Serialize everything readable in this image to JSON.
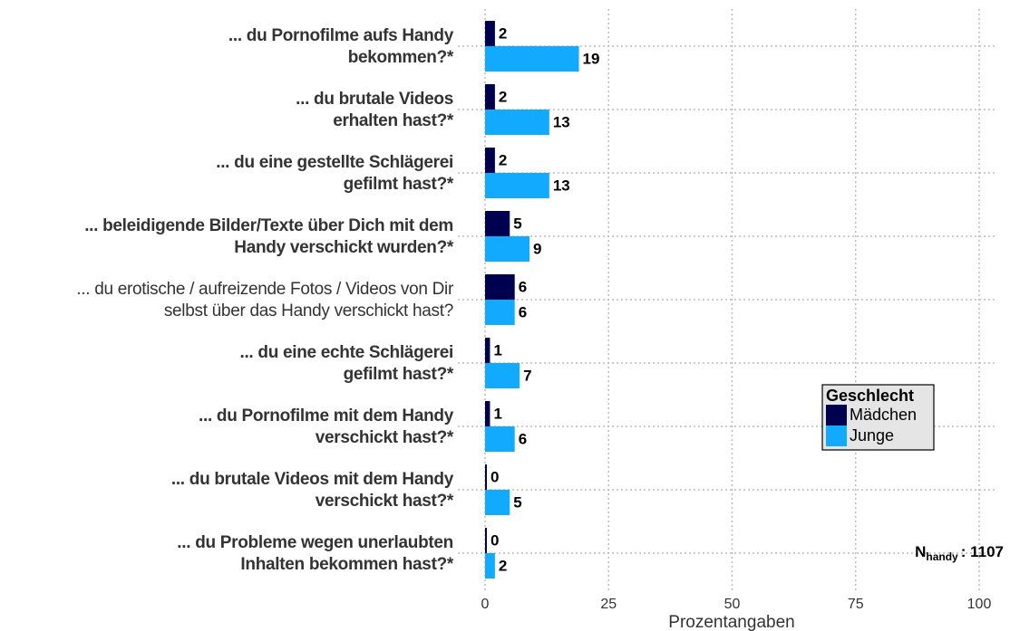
{
  "chart_data": {
    "type": "barh",
    "categories": [
      [
        "... du Pornofilme aufs Handy",
        "bekommen?*"
      ],
      [
        "... du brutale Videos",
        "erhalten hast?*"
      ],
      [
        "... du eine gestellte Schlägerei",
        "gefilmt hast?*"
      ],
      [
        "... beleidigende Bilder/Texte über Dich mit dem",
        "Handy verschickt wurden?*"
      ],
      [
        "... du erotische / aufreizende Fotos / Videos von Dir",
        "selbst über das Handy verschickt hast?"
      ],
      [
        "... du eine echte Schlägerei",
        "gefilmt hast?*"
      ],
      [
        "... du Pornofilme mit dem Handy",
        "verschickt hast?*"
      ],
      [
        "... du brutale Videos mit dem Handy",
        "verschickt hast?*"
      ],
      [
        "... du Probleme wegen unerlaubten",
        "Inhalten bekommen hast?*"
      ]
    ],
    "category_bold": [
      true,
      true,
      true,
      true,
      false,
      true,
      true,
      true,
      true
    ],
    "series": [
      {
        "name": "Mädchen",
        "color": "#000050",
        "values": [
          2,
          2,
          2,
          5,
          6,
          1,
          1,
          0,
          0
        ]
      },
      {
        "name": "Junge",
        "color": "#12aaff",
        "values": [
          19,
          13,
          13,
          9,
          6,
          7,
          6,
          5,
          2
        ]
      }
    ],
    "xlabel": "Prozentangaben",
    "xlim": [
      0,
      100
    ],
    "xticks": [
      0,
      25,
      50,
      75,
      100
    ],
    "grid": true,
    "legend": {
      "title": "Geschlecht",
      "position": "right"
    },
    "annotation": {
      "main": "N",
      "sub": "handy",
      "rest": ": 1107"
    }
  }
}
